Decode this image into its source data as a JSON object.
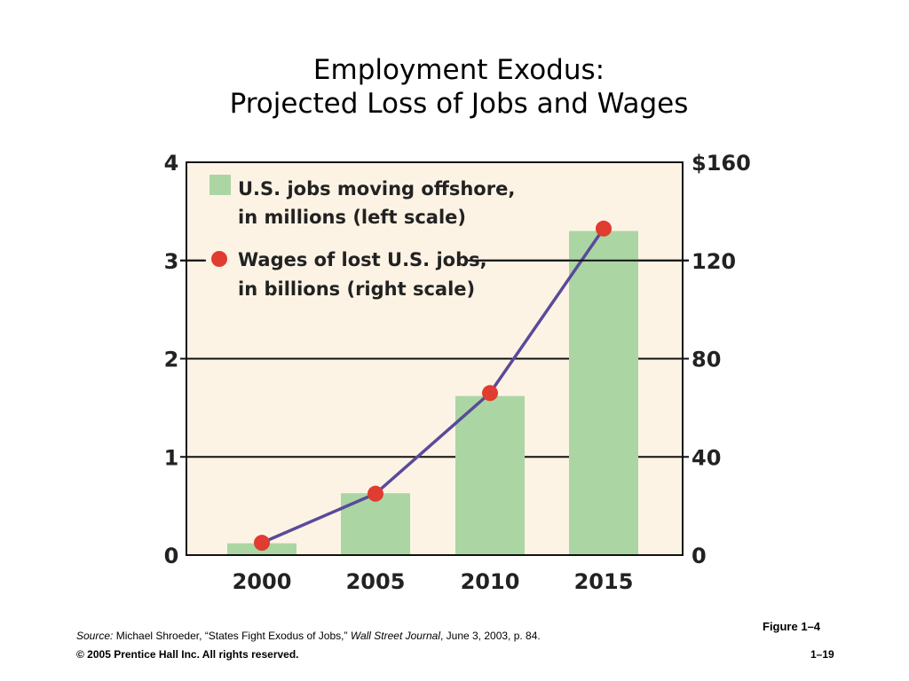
{
  "slide": {
    "title_line1": "Employment Exodus:",
    "title_line2": "Projected Loss of Jobs and Wages",
    "figure_label": "Figure 1–4",
    "source_prefix": "Source:",
    "source_author": " Michael Shroeder, “States Fight Exodus of Jobs,” ",
    "source_journal": "Wall Street Journal",
    "source_suffix": ", June 3, 2003, p. 84.",
    "copyright": "© 2005 Prentice Hall Inc. All rights reserved.",
    "page_number": "1–19"
  },
  "chart_data": {
    "type": "bar",
    "title": "",
    "categories": [
      "2000",
      "2005",
      "2010",
      "2015"
    ],
    "series": [
      {
        "name": "U.S. jobs moving offshore, in millions (left scale)",
        "legend_lines": [
          "U.S. jobs moving offshore,",
          "in millions (left scale)"
        ],
        "kind": "bar",
        "axis": "left",
        "values": [
          0.12,
          0.63,
          1.62,
          3.3
        ],
        "color": "#abd6a3"
      },
      {
        "name": "Wages of lost U.S. jobs, in billions (right scale)",
        "legend_lines": [
          "Wages of lost U.S. jobs,",
          "in billions (right scale)"
        ],
        "kind": "line",
        "axis": "right",
        "values": [
          5,
          25,
          66,
          133
        ],
        "color": "#e03c31",
        "line_color": "#5a4a9a"
      }
    ],
    "left_axis": {
      "ylim": [
        0,
        4
      ],
      "ticks": [
        "0",
        "1",
        "2",
        "3",
        "4"
      ]
    },
    "right_axis": {
      "ylim": [
        0,
        160
      ],
      "ticks": [
        "0",
        "40",
        "80",
        "120",
        "$160"
      ]
    },
    "grid": true,
    "legend_position": "top-left",
    "background_color": "#fdf3e4"
  }
}
